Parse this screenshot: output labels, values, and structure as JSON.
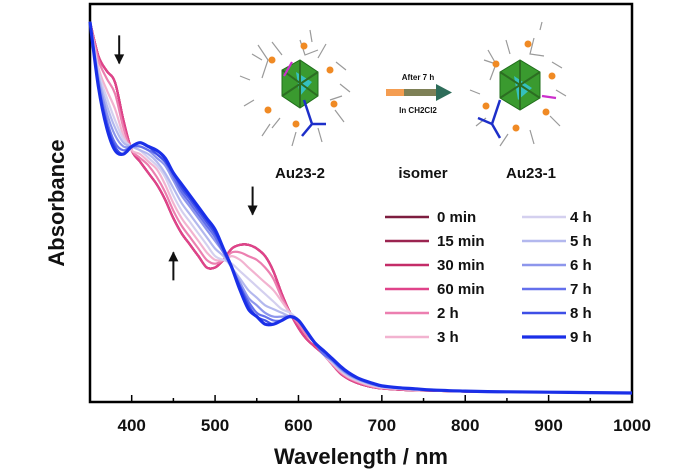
{
  "chart_data": {
    "type": "line",
    "xlabel": "Wavelength / nm",
    "ylabel": "Absorbance",
    "xlim": [
      350,
      1000
    ],
    "ylim": [
      0,
      1
    ],
    "x_ticks": [
      400,
      500,
      600,
      700,
      800,
      900,
      1000
    ],
    "legend_position": "right",
    "x": [
      350,
      360,
      370,
      380,
      390,
      400,
      410,
      420,
      430,
      440,
      450,
      460,
      470,
      480,
      490,
      500,
      510,
      520,
      530,
      540,
      550,
      560,
      570,
      580,
      590,
      600,
      610,
      620,
      630,
      640,
      650,
      660,
      670,
      680,
      690,
      700,
      720,
      740,
      760,
      800,
      850,
      900,
      950,
      1000
    ],
    "series": [
      {
        "name": "0 min",
        "color": "#7d1d3f",
        "values": [
          0.99,
          0.9,
          0.86,
          0.83,
          0.73,
          0.65,
          0.62,
          0.59,
          0.56,
          0.52,
          0.47,
          0.43,
          0.4,
          0.37,
          0.34,
          0.34,
          0.36,
          0.39,
          0.4,
          0.4,
          0.39,
          0.37,
          0.33,
          0.27,
          0.22,
          0.18,
          0.15,
          0.13,
          0.11,
          0.085,
          0.06,
          0.045,
          0.035,
          0.028,
          0.023,
          0.02,
          0.017,
          0.015,
          0.014,
          0.012,
          0.011,
          0.01,
          0.009,
          0.008
        ]
      },
      {
        "name": "15 min",
        "color": "#9b2450",
        "values": [
          0.99,
          0.9,
          0.86,
          0.83,
          0.73,
          0.65,
          0.62,
          0.59,
          0.56,
          0.52,
          0.47,
          0.43,
          0.4,
          0.37,
          0.34,
          0.34,
          0.36,
          0.39,
          0.4,
          0.4,
          0.39,
          0.37,
          0.33,
          0.27,
          0.22,
          0.18,
          0.15,
          0.13,
          0.11,
          0.085,
          0.06,
          0.045,
          0.035,
          0.028,
          0.023,
          0.02,
          0.017,
          0.015,
          0.014,
          0.012,
          0.011,
          0.01,
          0.009,
          0.008
        ]
      },
      {
        "name": "30 min",
        "color": "#c42c68",
        "values": [
          0.99,
          0.9,
          0.86,
          0.83,
          0.73,
          0.65,
          0.62,
          0.59,
          0.56,
          0.52,
          0.47,
          0.43,
          0.4,
          0.37,
          0.34,
          0.34,
          0.36,
          0.39,
          0.4,
          0.4,
          0.39,
          0.37,
          0.33,
          0.27,
          0.22,
          0.18,
          0.15,
          0.13,
          0.11,
          0.085,
          0.06,
          0.045,
          0.035,
          0.028,
          0.023,
          0.02,
          0.017,
          0.015,
          0.014,
          0.012,
          0.011,
          0.01,
          0.009,
          0.008
        ]
      },
      {
        "name": "60 min",
        "color": "#e0438a",
        "values": [
          0.99,
          0.9,
          0.86,
          0.83,
          0.73,
          0.65,
          0.62,
          0.59,
          0.56,
          0.52,
          0.47,
          0.43,
          0.4,
          0.37,
          0.34,
          0.34,
          0.36,
          0.39,
          0.4,
          0.4,
          0.39,
          0.37,
          0.33,
          0.27,
          0.22,
          0.18,
          0.15,
          0.13,
          0.11,
          0.085,
          0.06,
          0.045,
          0.035,
          0.028,
          0.023,
          0.02,
          0.017,
          0.015,
          0.014,
          0.012,
          0.011,
          0.01,
          0.009,
          0.008
        ]
      },
      {
        "name": "2 h",
        "color": "#ec7fb0",
        "values": [
          0.99,
          0.89,
          0.84,
          0.8,
          0.71,
          0.65,
          0.63,
          0.61,
          0.58,
          0.54,
          0.49,
          0.45,
          0.42,
          0.39,
          0.36,
          0.35,
          0.36,
          0.38,
          0.38,
          0.37,
          0.36,
          0.34,
          0.31,
          0.26,
          0.22,
          0.19,
          0.16,
          0.14,
          0.11,
          0.085,
          0.063,
          0.048,
          0.038,
          0.03,
          0.024,
          0.021,
          0.018,
          0.016,
          0.014,
          0.012,
          0.011,
          0.01,
          0.009,
          0.008
        ]
      },
      {
        "name": "3 h",
        "color": "#f2b3d0",
        "values": [
          0.99,
          0.87,
          0.81,
          0.76,
          0.69,
          0.65,
          0.64,
          0.62,
          0.6,
          0.56,
          0.51,
          0.47,
          0.44,
          0.41,
          0.38,
          0.36,
          0.36,
          0.37,
          0.36,
          0.34,
          0.32,
          0.3,
          0.28,
          0.25,
          0.22,
          0.2,
          0.17,
          0.14,
          0.11,
          0.088,
          0.066,
          0.05,
          0.04,
          0.032,
          0.026,
          0.022,
          0.019,
          0.016,
          0.015,
          0.013,
          0.011,
          0.01,
          0.009,
          0.008
        ]
      },
      {
        "name": "4 h",
        "color": "#d4d0ef",
        "values": [
          0.99,
          0.86,
          0.79,
          0.73,
          0.68,
          0.66,
          0.65,
          0.63,
          0.61,
          0.58,
          0.53,
          0.49,
          0.46,
          0.43,
          0.4,
          0.37,
          0.36,
          0.35,
          0.33,
          0.31,
          0.29,
          0.27,
          0.25,
          0.23,
          0.22,
          0.2,
          0.17,
          0.14,
          0.11,
          0.09,
          0.069,
          0.053,
          0.042,
          0.034,
          0.028,
          0.023,
          0.019,
          0.017,
          0.015,
          0.013,
          0.011,
          0.01,
          0.009,
          0.008
        ]
      },
      {
        "name": "5 h",
        "color": "#b3b8ee",
        "values": [
          0.99,
          0.85,
          0.77,
          0.71,
          0.67,
          0.66,
          0.65,
          0.64,
          0.62,
          0.59,
          0.55,
          0.51,
          0.48,
          0.45,
          0.42,
          0.39,
          0.37,
          0.34,
          0.31,
          0.28,
          0.26,
          0.24,
          0.23,
          0.22,
          0.21,
          0.2,
          0.17,
          0.14,
          0.11,
          0.092,
          0.071,
          0.055,
          0.044,
          0.036,
          0.029,
          0.024,
          0.02,
          0.017,
          0.015,
          0.013,
          0.011,
          0.01,
          0.009,
          0.008
        ]
      },
      {
        "name": "6 h",
        "color": "#8d96ec",
        "values": [
          0.99,
          0.84,
          0.75,
          0.69,
          0.66,
          0.66,
          0.66,
          0.65,
          0.63,
          0.61,
          0.57,
          0.53,
          0.5,
          0.47,
          0.44,
          0.41,
          0.38,
          0.34,
          0.3,
          0.26,
          0.24,
          0.22,
          0.21,
          0.21,
          0.21,
          0.2,
          0.17,
          0.14,
          0.11,
          0.094,
          0.073,
          0.057,
          0.046,
          0.037,
          0.03,
          0.025,
          0.021,
          0.018,
          0.016,
          0.013,
          0.011,
          0.01,
          0.009,
          0.008
        ]
      },
      {
        "name": "7 h",
        "color": "#6470ec",
        "values": [
          0.99,
          0.83,
          0.73,
          0.67,
          0.65,
          0.66,
          0.66,
          0.65,
          0.64,
          0.62,
          0.58,
          0.54,
          0.51,
          0.48,
          0.45,
          0.42,
          0.38,
          0.34,
          0.29,
          0.25,
          0.22,
          0.21,
          0.2,
          0.2,
          0.21,
          0.2,
          0.17,
          0.14,
          0.11,
          0.096,
          0.075,
          0.059,
          0.047,
          0.038,
          0.031,
          0.026,
          0.021,
          0.018,
          0.016,
          0.013,
          0.011,
          0.01,
          0.009,
          0.008
        ]
      },
      {
        "name": "8 h",
        "color": "#3e4fe6",
        "values": [
          0.99,
          0.82,
          0.72,
          0.66,
          0.64,
          0.66,
          0.67,
          0.66,
          0.64,
          0.62,
          0.59,
          0.55,
          0.52,
          0.49,
          0.46,
          0.43,
          0.39,
          0.34,
          0.29,
          0.24,
          0.21,
          0.2,
          0.19,
          0.2,
          0.21,
          0.2,
          0.17,
          0.14,
          0.12,
          0.098,
          0.077,
          0.06,
          0.048,
          0.039,
          0.032,
          0.026,
          0.022,
          0.018,
          0.016,
          0.013,
          0.011,
          0.01,
          0.009,
          0.008
        ]
      },
      {
        "name": "9 h",
        "color": "#1a2fe8",
        "values": [
          0.99,
          0.82,
          0.71,
          0.65,
          0.64,
          0.66,
          0.67,
          0.66,
          0.65,
          0.63,
          0.59,
          0.56,
          0.53,
          0.5,
          0.47,
          0.44,
          0.39,
          0.34,
          0.28,
          0.23,
          0.21,
          0.19,
          0.19,
          0.2,
          0.21,
          0.2,
          0.17,
          0.14,
          0.12,
          0.1,
          0.079,
          0.062,
          0.049,
          0.04,
          0.033,
          0.027,
          0.022,
          0.019,
          0.016,
          0.013,
          0.011,
          0.01,
          0.009,
          0.008
        ]
      }
    ],
    "annotations": [
      {
        "type": "arrow",
        "direction": "down",
        "x": 385,
        "y": 0.88
      },
      {
        "type": "arrow",
        "direction": "up",
        "x": 450,
        "y": 0.38
      },
      {
        "type": "arrow",
        "direction": "down",
        "x": 545,
        "y": 0.48
      }
    ]
  },
  "inset": {
    "left_label": "Au23-2",
    "middle_label": "isomer",
    "right_label": "Au23-1",
    "arrow_top": "After 7 h",
    "arrow_bottom": "In CH2Cl2",
    "arrow_color": "#2e6d5a"
  }
}
